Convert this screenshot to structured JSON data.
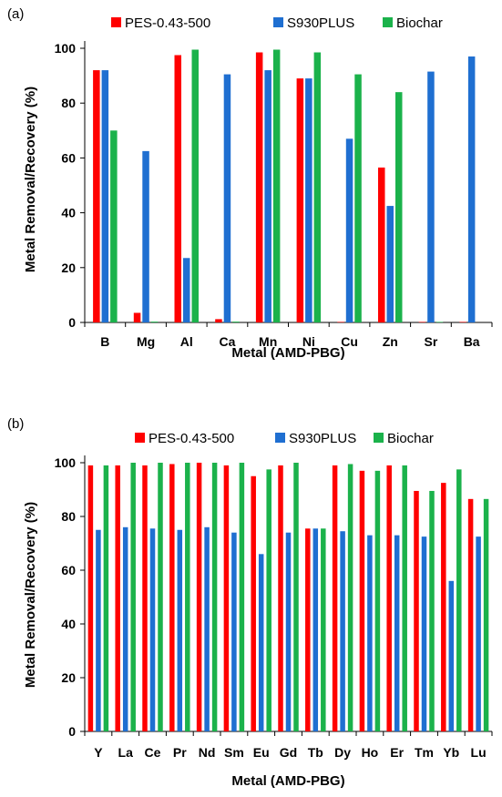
{
  "colors": {
    "PES-0.43-500": "#ff0000",
    "S930PLUS": "#1f6fd1",
    "Biochar": "#1bb24b"
  },
  "chart_data": [
    {
      "panel": "(a)",
      "type": "bar",
      "xlabel": "Metal (AMD-PBG)",
      "ylabel": "Metal Removal/Recovery (%)",
      "ylim": [
        0,
        105
      ],
      "yticks": [
        0,
        20,
        40,
        60,
        80,
        100
      ],
      "legend_position": "top",
      "categories": [
        "B",
        "Mg",
        "Al",
        "Ca",
        "Mn",
        "Ni",
        "Cu",
        "Zn",
        "Sr",
        "Ba"
      ],
      "series": [
        {
          "name": "PES-0.43-500",
          "values": [
            92,
            3.5,
            97.5,
            1.2,
            98.5,
            89,
            0.2,
            56.5,
            0.2,
            0.2
          ]
        },
        {
          "name": "S930PLUS",
          "values": [
            92,
            62.5,
            23.5,
            90.5,
            92,
            89,
            67,
            42.5,
            91.5,
            97
          ]
        },
        {
          "name": "Biochar",
          "values": [
            70,
            0.3,
            99.5,
            0.3,
            99.5,
            98.5,
            90.5,
            84,
            0.2,
            0
          ]
        }
      ]
    },
    {
      "panel": "(b)",
      "type": "bar",
      "xlabel": "Metal (AMD-PBG)",
      "ylabel": "Metal Removal/Recovery (%)",
      "ylim": [
        0,
        105
      ],
      "yticks": [
        0,
        20,
        40,
        60,
        80,
        100
      ],
      "legend_position": "top",
      "categories": [
        "Y",
        "La",
        "Ce",
        "Pr",
        "Nd",
        "Sm",
        "Eu",
        "Gd",
        "Tb",
        "Dy",
        "Ho",
        "Er",
        "Tm",
        "Yb",
        "Lu"
      ],
      "series": [
        {
          "name": "PES-0.43-500",
          "values": [
            99,
            99,
            99,
            99.5,
            100,
            99,
            95,
            99,
            75.5,
            99,
            97,
            99,
            89.5,
            92.5,
            86.5
          ]
        },
        {
          "name": "S930PLUS",
          "values": [
            75,
            76,
            75.5,
            75,
            76,
            74,
            66,
            74,
            75.5,
            74.5,
            73,
            73,
            72.5,
            56,
            72.5
          ]
        },
        {
          "name": "Biochar",
          "values": [
            99,
            100,
            100,
            100,
            100,
            100,
            97.5,
            100,
            75.5,
            99.5,
            97,
            99,
            89.5,
            97.5,
            86.5
          ]
        }
      ]
    }
  ]
}
